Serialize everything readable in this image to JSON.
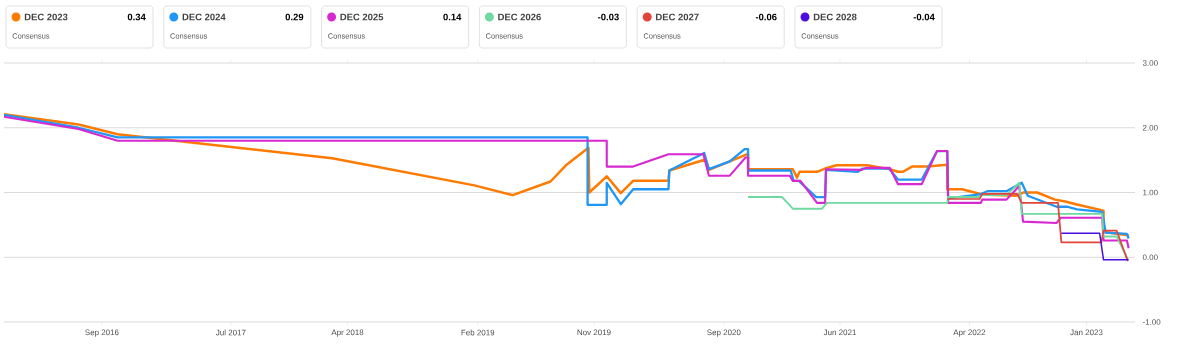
{
  "chart_data": {
    "type": "line",
    "xlim": [
      "2016-01-15",
      "2023-04-25"
    ],
    "xticks": [
      {
        "value": "2016-09-01",
        "label": "Sep 2016"
      },
      {
        "value": "2017-07-01",
        "label": "Jul 2017"
      },
      {
        "value": "2018-04-01",
        "label": "Apr 2018"
      },
      {
        "value": "2019-02-01",
        "label": "Feb 2019"
      },
      {
        "value": "2019-11-01",
        "label": "Nov 2019"
      },
      {
        "value": "2020-09-01",
        "label": "Sep 2020"
      },
      {
        "value": "2021-06-01",
        "label": "Jun 2021"
      },
      {
        "value": "2022-04-01",
        "label": "Apr 2022"
      },
      {
        "value": "2023-01-01",
        "label": "Jan 2023"
      }
    ],
    "ylim": [
      -1,
      3
    ],
    "yticks": [
      {
        "value": -1,
        "label": "-1.00"
      },
      {
        "value": 0,
        "label": "0.00"
      },
      {
        "value": 1,
        "label": "1.00"
      },
      {
        "value": 2,
        "label": "2.00"
      },
      {
        "value": 3,
        "label": "3.00"
      }
    ],
    "grid": "y",
    "legend": "top",
    "line_style": "solid",
    "annotations": [
      "0.34",
      "Consensus",
      "0.29",
      "Consensus",
      "0.14",
      "Consensus",
      "-0.03",
      "Consensus",
      "-0.06",
      "Consensus",
      "-0.04",
      "Consensus"
    ],
    "series": [
      {
        "name": "DEC 2023",
        "color": "#ff7a00",
        "x": [
          "2016-01-15",
          "2016-07-08",
          "2016-10-08",
          "2018-02-24",
          "2019-01-24",
          "2019-04-24",
          "2019-07-22",
          "2019-08-27",
          "2019-10-19",
          "2019-10-21",
          "2019-12-01",
          "2020-01-03",
          "2020-02-01",
          "2020-04-24",
          "2020-04-26",
          "2020-07-20",
          "2020-07-28",
          "2020-09-15",
          "2020-10-25",
          "2020-10-28",
          "2020-10-28",
          "2021-02-10",
          "2021-02-20",
          "2021-02-26",
          "2021-04-08",
          "2021-04-27",
          "2021-05-24",
          "2021-08-04",
          "2021-09-26",
          "2021-10-15",
          "2021-10-27",
          "2021-11-17",
          "2021-12-22",
          "2022-02-08",
          "2022-02-08",
          "2022-03-15",
          "2022-05-01",
          "2022-07-20",
          "2022-08-05",
          "2022-09-07",
          "2022-10-19",
          "2022-11-12",
          "2022-12-12",
          "2023-02-10",
          "2023-02-10",
          "2023-04-10"
        ],
        "values": [
          2.21,
          2.05,
          1.9,
          1.53,
          1.11,
          0.96,
          1.17,
          1.42,
          1.69,
          1.0,
          1.25,
          0.99,
          1.18,
          1.18,
          1.34,
          1.51,
          1.35,
          1.48,
          1.59,
          1.59,
          1.36,
          1.36,
          1.23,
          1.32,
          1.32,
          1.37,
          1.42,
          1.42,
          1.36,
          1.32,
          1.32,
          1.4,
          1.4,
          1.43,
          1.05,
          1.05,
          0.97,
          0.95,
          1.0,
          1.0,
          0.89,
          0.86,
          0.81,
          0.72,
          0.39,
          0.34
        ]
      },
      {
        "name": "DEC 2024",
        "color": "#2196f3",
        "x": [
          "2016-01-15",
          "2016-07-08",
          "2016-10-08",
          "2019-10-17",
          "2019-10-17",
          "2019-12-01",
          "2019-12-01",
          "2020-01-03",
          "2020-02-01",
          "2020-04-24",
          "2020-04-26",
          "2020-07-17",
          "2020-07-28",
          "2020-09-15",
          "2020-10-20",
          "2020-10-28",
          "2020-10-28",
          "2021-02-05",
          "2021-02-12",
          "2021-02-24",
          "2021-04-06",
          "2021-04-27",
          "2021-04-29",
          "2021-07-13",
          "2021-07-24",
          "2021-09-24",
          "2021-10-15",
          "2021-12-10",
          "2022-01-15",
          "2022-02-08",
          "2022-02-10",
          "2022-04-25",
          "2022-05-13",
          "2022-06-27",
          "2022-08-02",
          "2022-08-16",
          "2022-10-23",
          "2022-11-17",
          "2022-12-10",
          "2023-02-07",
          "2023-02-15",
          "2023-04-06",
          "2023-04-10"
        ],
        "values": [
          2.2,
          2.0,
          1.85,
          1.85,
          0.81,
          0.81,
          1.15,
          0.82,
          1.05,
          1.05,
          1.34,
          1.61,
          1.36,
          1.48,
          1.67,
          1.67,
          1.34,
          1.34,
          1.18,
          1.18,
          0.93,
          0.93,
          1.35,
          1.32,
          1.37,
          1.37,
          1.2,
          1.2,
          1.64,
          1.64,
          0.91,
          0.97,
          1.02,
          1.02,
          1.15,
          0.95,
          0.78,
          0.78,
          0.74,
          0.7,
          0.38,
          0.36,
          0.29
        ]
      },
      {
        "name": "DEC 2025",
        "color": "#d62ad0",
        "x": [
          "2016-01-15",
          "2016-07-08",
          "2016-10-08",
          "2019-12-01",
          "2019-12-01",
          "2020-02-01",
          "2020-04-24",
          "2020-07-15",
          "2020-07-28",
          "2020-09-15",
          "2020-10-22",
          "2020-10-28",
          "2020-10-28",
          "2021-02-03",
          "2021-02-10",
          "2021-02-28",
          "2021-04-08",
          "2021-04-27",
          "2021-04-29",
          "2021-07-22",
          "2021-08-01",
          "2021-09-26",
          "2021-10-15",
          "2021-12-10",
          "2022-01-15",
          "2022-02-08",
          "2022-02-10",
          "2022-04-28",
          "2022-05-01",
          "2022-06-27",
          "2022-07-27",
          "2022-08-05",
          "2022-10-23",
          "2022-11-01",
          "2023-02-07",
          "2023-02-10",
          "2023-04-06",
          "2023-04-10"
        ],
        "values": [
          2.17,
          1.98,
          1.8,
          1.8,
          1.4,
          1.4,
          1.59,
          1.59,
          1.26,
          1.26,
          1.54,
          1.54,
          1.26,
          1.26,
          1.18,
          1.18,
          0.84,
          0.84,
          1.36,
          1.35,
          1.38,
          1.38,
          1.13,
          1.13,
          1.64,
          1.64,
          0.84,
          0.84,
          0.89,
          0.89,
          1.1,
          0.55,
          0.53,
          0.61,
          0.61,
          0.26,
          0.26,
          0.14
        ]
      },
      {
        "name": "DEC 2026",
        "color": "#6fd9a0",
        "x": [
          "2020-10-28",
          "2021-01-16",
          "2021-02-10",
          "2021-04-20",
          "2021-05-01",
          "2022-02-08",
          "2022-02-10",
          "2022-04-25",
          "2022-05-01",
          "2022-06-27",
          "2022-07-27",
          "2022-08-02",
          "2023-02-07",
          "2023-02-10",
          "2023-03-13",
          "2023-04-08"
        ],
        "values": [
          0.93,
          0.93,
          0.75,
          0.75,
          0.84,
          0.84,
          0.93,
          0.93,
          0.96,
          0.96,
          1.15,
          0.67,
          0.67,
          0.32,
          0.32,
          -0.03
        ]
      },
      {
        "name": "DEC 2027",
        "color": "#e0443a",
        "x": [
          "2022-02-08",
          "2022-04-25",
          "2022-05-01",
          "2022-07-22",
          "2022-08-02",
          "2022-10-26",
          "2022-11-03",
          "2023-02-05",
          "2023-02-10",
          "2023-03-13",
          "2023-04-08"
        ],
        "values": [
          0.9,
          0.9,
          0.98,
          0.98,
          0.84,
          0.84,
          0.23,
          0.23,
          0.41,
          0.41,
          -0.06
        ]
      },
      {
        "name": "DEC 2028",
        "color": "#4b0fdd",
        "x": [
          "2022-11-03",
          "2023-02-01",
          "2023-02-10",
          "2023-04-10"
        ],
        "values": [
          0.37,
          0.37,
          -0.04,
          -0.04
        ]
      }
    ]
  }
}
